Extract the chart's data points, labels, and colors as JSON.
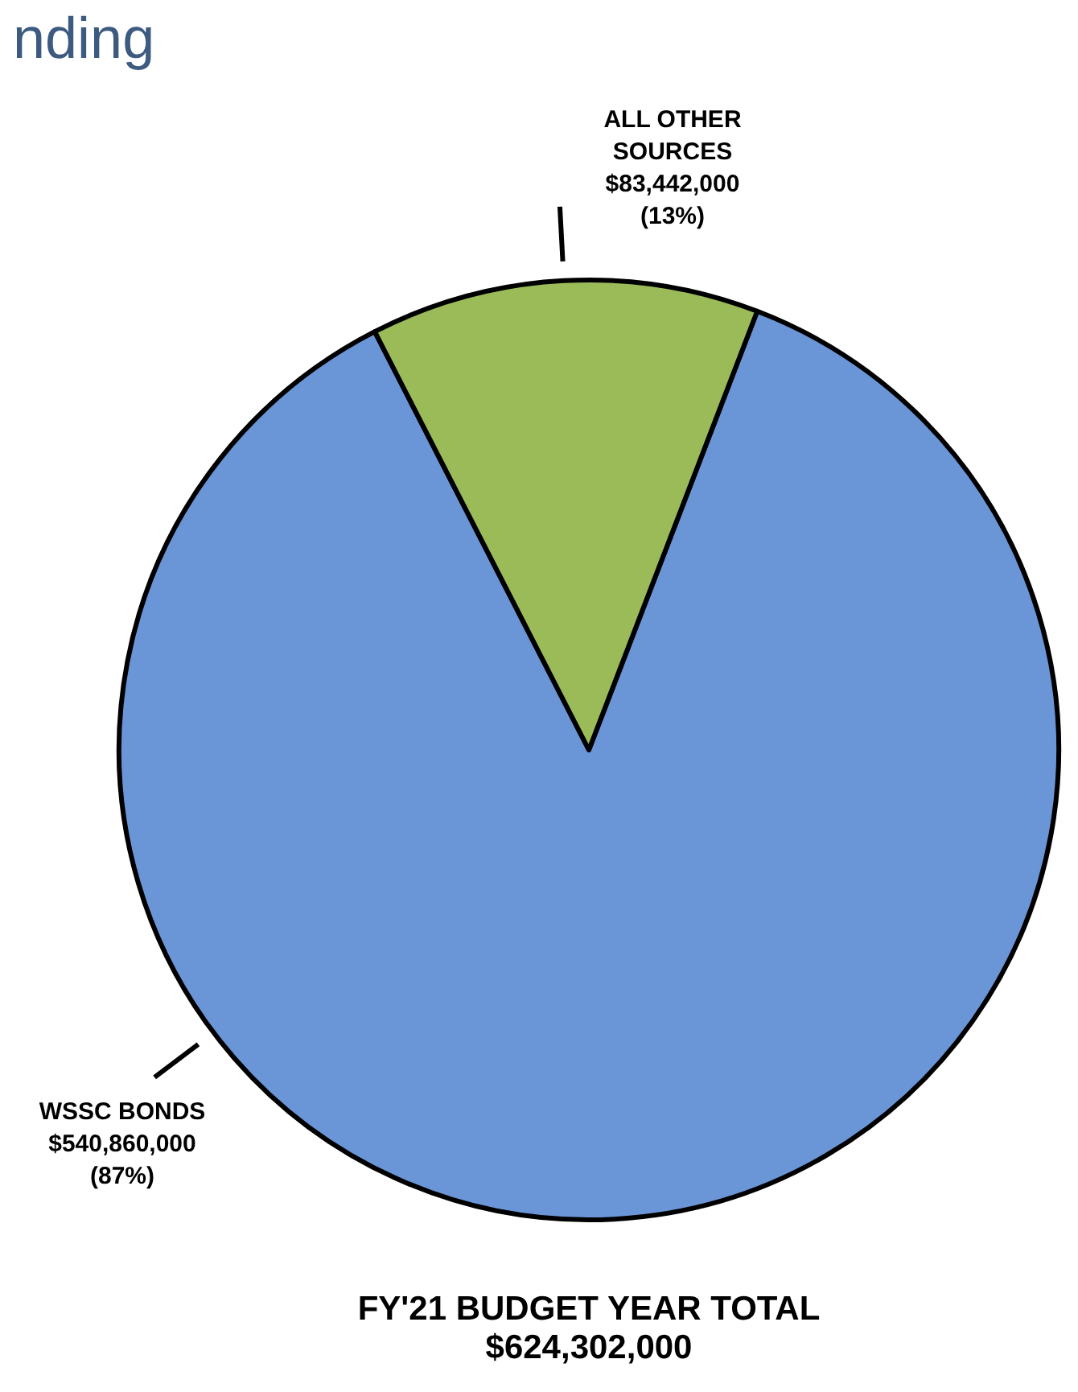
{
  "chart_data": {
    "type": "pie",
    "title": "FY'21 BUDGET YEAR TOTAL",
    "subtitle": "$624,302,000",
    "annotations": [
      "nding"
    ],
    "categories": [
      "WSSC BONDS",
      "ALL OTHER SOURCES"
    ],
    "values": [
      540860000,
      83442000
    ],
    "colors": [
      "#6a96d8",
      "#9bbb59"
    ],
    "value_labels": [
      "$540,860,000\n(87%)",
      "$83,442,000\n(13%)"
    ]
  }
}
